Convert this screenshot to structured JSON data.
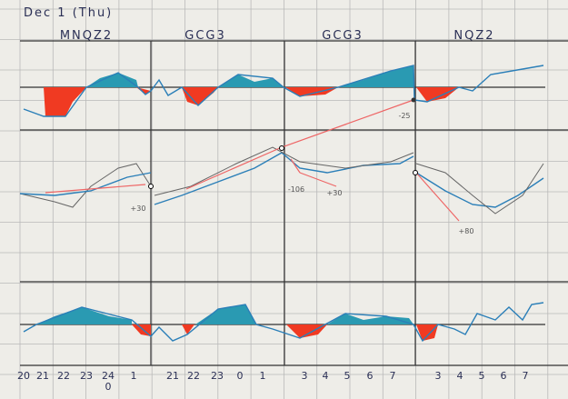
{
  "header": {
    "title": "Dec 1 (Thu)"
  },
  "panels": [
    {
      "label": "MNQZ2",
      "ticks": [
        "20",
        "21",
        "22",
        "23",
        "24",
        "1"
      ],
      "subtick": "0"
    },
    {
      "label": "GCG3",
      "ticks": [
        "21",
        "22",
        "23",
        "0",
        "1"
      ]
    },
    {
      "label": "GCG3",
      "ticks": [
        "3",
        "4",
        "5",
        "6",
        "7"
      ]
    },
    {
      "label": "NQZ2",
      "ticks": [
        "3",
        "4",
        "5",
        "6",
        "7"
      ]
    }
  ],
  "annotations": [
    "-25",
    "+30",
    "-106",
    "+30",
    "+80"
  ]
}
